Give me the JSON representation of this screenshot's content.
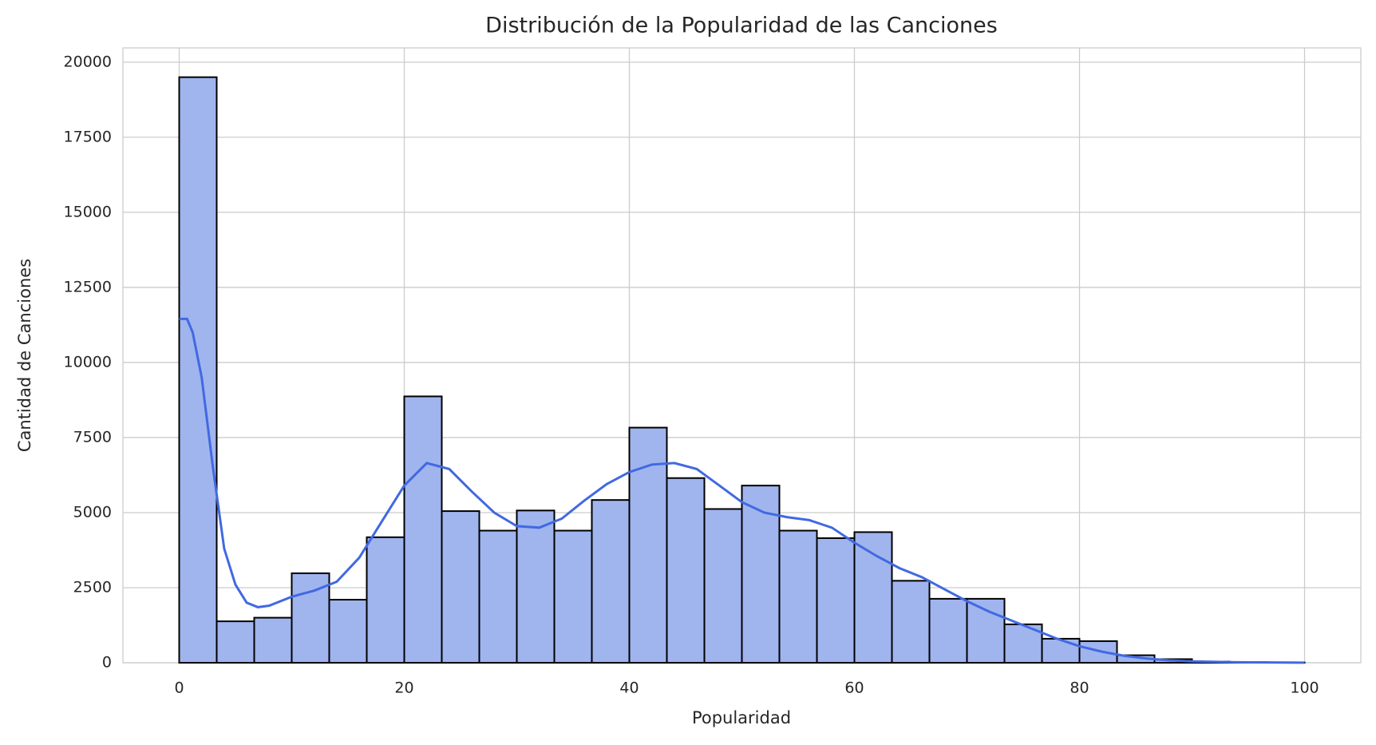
{
  "chart_data": {
    "type": "histogram",
    "title": "Distribución de la Popularidad de las Canciones",
    "x_label": "Popularidad",
    "y_label": "Cantidad de Canciones",
    "bins": [
      0,
      3.333,
      6.667,
      10,
      13.333,
      16.667,
      20,
      23.333,
      26.667,
      30,
      33.333,
      36.667,
      40,
      43.333,
      46.667,
      50,
      53.333,
      56.667,
      60,
      63.333,
      66.667,
      70,
      73.333,
      76.667,
      80,
      83.333,
      86.667,
      90,
      93.333,
      96.667,
      100
    ],
    "counts": [
      19500,
      1380,
      1500,
      2980,
      2100,
      4180,
      8870,
      5050,
      4400,
      5070,
      4400,
      5420,
      7830,
      6150,
      5120,
      5900,
      4400,
      4150,
      4350,
      2730,
      2130,
      2130,
      1280,
      800,
      720,
      250,
      120,
      40,
      20,
      10
    ],
    "color": "#a0b4ee",
    "edge_color": "#000000",
    "kde": {
      "color": "#4169e1",
      "x": [
        0,
        0.7,
        1.2,
        2,
        3,
        4,
        5,
        6,
        7,
        8,
        10,
        12,
        14,
        16,
        18,
        20,
        22,
        24,
        26,
        28,
        30,
        32,
        34,
        36,
        38,
        40,
        42,
        44,
        46,
        48,
        50,
        52,
        54,
        56,
        58,
        60,
        62,
        64,
        66,
        68,
        70,
        72,
        74,
        76,
        78,
        80,
        82,
        84,
        86,
        88,
        90,
        94,
        100
      ],
      "y": [
        11450,
        11450,
        11000,
        9500,
        6500,
        3800,
        2600,
        2000,
        1850,
        1900,
        2200,
        2400,
        2700,
        3500,
        4700,
        5900,
        6650,
        6450,
        5700,
        5000,
        4550,
        4500,
        4800,
        5400,
        5950,
        6350,
        6600,
        6650,
        6450,
        5900,
        5350,
        5000,
        4850,
        4750,
        4500,
        4000,
        3550,
        3150,
        2850,
        2450,
        2050,
        1700,
        1400,
        1100,
        800,
        550,
        370,
        230,
        140,
        80,
        45,
        15,
        3
      ]
    },
    "xlim": [
      -5,
      105
    ],
    "ylim": [
      0,
      20475
    ],
    "xticks": [
      0,
      20,
      40,
      60,
      80,
      100
    ],
    "yticks": [
      0,
      2500,
      5000,
      7500,
      10000,
      12500,
      15000,
      17500,
      20000
    ],
    "grid": true
  }
}
